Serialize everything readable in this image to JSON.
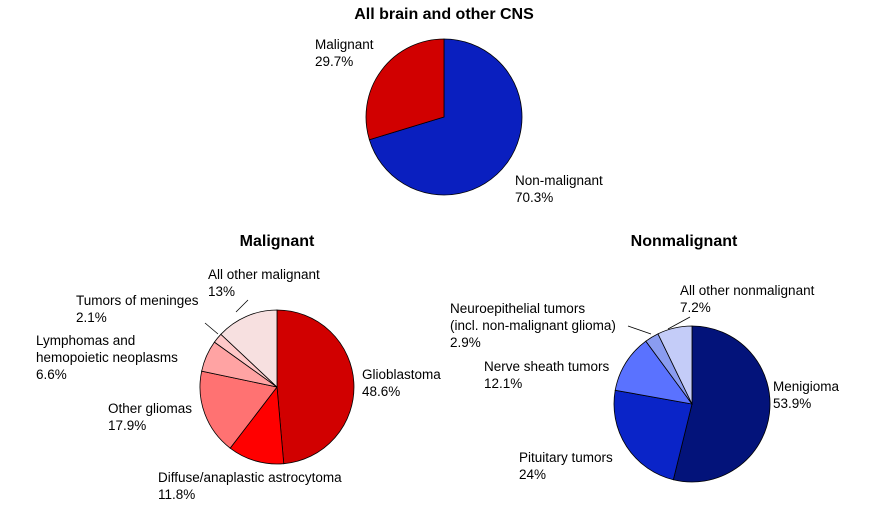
{
  "chart_data": [
    {
      "type": "pie",
      "title": "All brain and other CNS",
      "slices": [
        {
          "name": "Non-malignant",
          "value": 70.3,
          "value_label": "70.3%",
          "color": "#0a1fbf"
        },
        {
          "name": "Malignant",
          "value": 29.7,
          "value_label": "29.7%",
          "color": "#d10000"
        }
      ]
    },
    {
      "type": "pie",
      "title": "Malignant",
      "slices": [
        {
          "name": "Glioblastoma",
          "value": 48.6,
          "value_label": "48.6%",
          "color": "#d10000"
        },
        {
          "name": "Diffuse/anaplastic astrocytoma",
          "value": 11.8,
          "value_label": "11.8%",
          "color": "#ff0000"
        },
        {
          "name": "Other gliomas",
          "value": 17.9,
          "value_label": "17.9%",
          "color": "#ff7272"
        },
        {
          "name": "Lymphomas and hemopoietic neoplasms",
          "name_lines": [
            "Lymphomas and",
            "hemopoietic neoplasms"
          ],
          "value": 6.6,
          "value_label": "6.6%",
          "color": "#ffa3a3"
        },
        {
          "name": "Tumors of meninges",
          "value": 2.1,
          "value_label": "2.1%",
          "color": "#ffc8c8"
        },
        {
          "name": "All other malignant",
          "value": 13,
          "value_label": "13%",
          "color": "#f7e0e0"
        }
      ]
    },
    {
      "type": "pie",
      "title": "Nonmalignant",
      "slices": [
        {
          "name": "Menigioma",
          "value": 53.9,
          "value_label": "53.9%",
          "color": "#03137a"
        },
        {
          "name": "Pituitary tumors",
          "value": 24,
          "value_label": "24%",
          "color": "#0a24c8"
        },
        {
          "name": "Nerve sheath tumors",
          "value": 12.1,
          "value_label": "12.1%",
          "color": "#5a72ff"
        },
        {
          "name": "Neuroepithelial tumors (incl. non-malignant glioma)",
          "name_lines": [
            "Neuroepithelial tumors",
            "(incl. non-malignant glioma)"
          ],
          "value": 2.9,
          "value_label": "2.9%",
          "color": "#8a9cf0"
        },
        {
          "name": "All other nonmalignant",
          "value": 7.2,
          "value_label": "7.2%",
          "color": "#c4ccf8"
        }
      ]
    }
  ]
}
